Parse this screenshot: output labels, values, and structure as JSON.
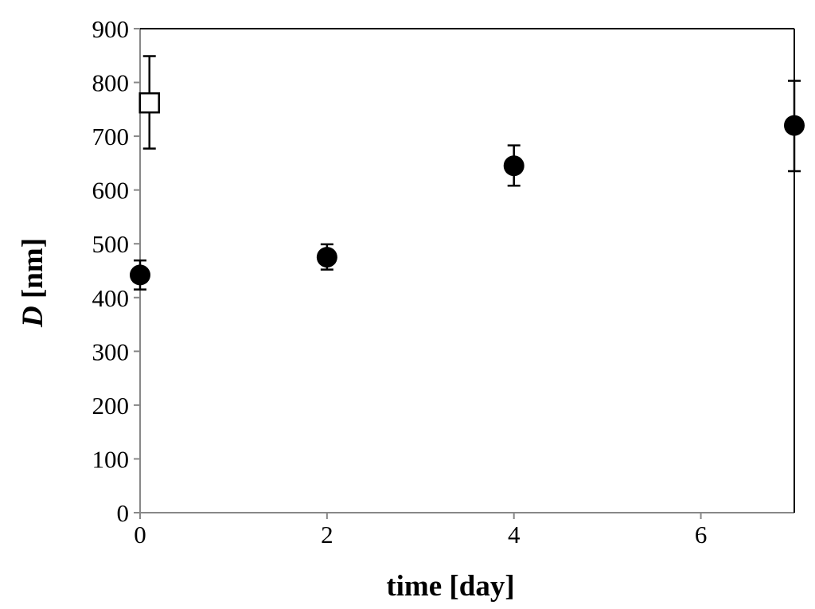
{
  "chart_data": {
    "type": "scatter",
    "xlabel": "time [day]",
    "ylabel": "D [nm]",
    "ylabel_italic_part": "D",
    "ylabel_rest": " [nm]",
    "xlim": [
      0,
      7
    ],
    "ylim": [
      0,
      900
    ],
    "xticks": [
      0,
      2,
      4,
      6
    ],
    "yticks": [
      0,
      100,
      200,
      300,
      400,
      500,
      600,
      700,
      800,
      900
    ],
    "grid": false,
    "series": [
      {
        "marker": "filled-circle",
        "color": "#000000",
        "x": [
          0,
          2,
          4,
          7
        ],
        "y": [
          442,
          475,
          645,
          720
        ],
        "err_low": [
          415,
          452,
          608,
          635
        ],
        "err_high": [
          469,
          499,
          683,
          803
        ]
      },
      {
        "marker": "open-square",
        "color": "#000000",
        "x": [
          0.1
        ],
        "y": [
          762
        ],
        "err_low": [
          677
        ],
        "err_high": [
          849
        ]
      }
    ]
  }
}
